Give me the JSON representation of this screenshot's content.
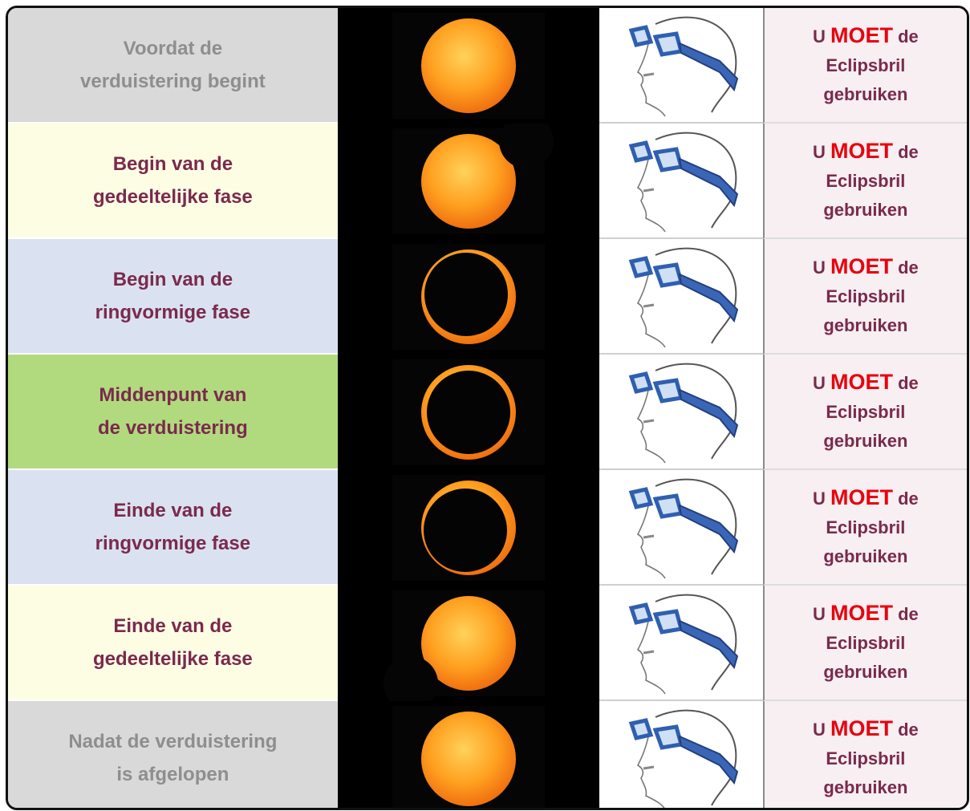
{
  "table": {
    "rows": [
      {
        "phase": [
          "Voordat de",
          "verduistering begint"
        ],
        "advice": {
          "before": "U",
          "emphasis": "MOET",
          "after": "de",
          "lines": [
            "Eclipsbril",
            "gebruiken"
          ]
        }
      },
      {
        "phase": [
          "Begin van de",
          "gedeeltelijke fase"
        ],
        "advice": {
          "before": "U",
          "emphasis": "MOET",
          "after": "de",
          "lines": [
            "Eclipsbril",
            "gebruiken"
          ]
        }
      },
      {
        "phase": [
          "Begin van de",
          "ringvormige fase"
        ],
        "advice": {
          "before": "U",
          "emphasis": "MOET",
          "after": "de",
          "lines": [
            "Eclipsbril",
            "gebruiken"
          ]
        }
      },
      {
        "phase": [
          "Middenpunt van",
          "de verduistering"
        ],
        "advice": {
          "before": "U",
          "emphasis": "MOET",
          "after": "de",
          "lines": [
            "Eclipsbril",
            "gebruiken"
          ]
        }
      },
      {
        "phase": [
          "Einde van de",
          "ringvormige fase"
        ],
        "advice": {
          "before": "U",
          "emphasis": "MOET",
          "after": "de",
          "lines": [
            "Eclipsbril",
            "gebruiken"
          ]
        }
      },
      {
        "phase": [
          "Einde van de",
          "gedeeltelijke fase"
        ],
        "advice": {
          "before": "U",
          "emphasis": "MOET",
          "after": "de",
          "lines": [
            "Eclipsbril",
            "gebruiken"
          ]
        }
      },
      {
        "phase": [
          "Nadat de verduistering",
          "is afgelopen"
        ],
        "advice": {
          "before": "U",
          "emphasis": "MOET",
          "after": "de",
          "lines": [
            "Eclipsbril",
            "gebruiken"
          ]
        }
      }
    ]
  }
}
